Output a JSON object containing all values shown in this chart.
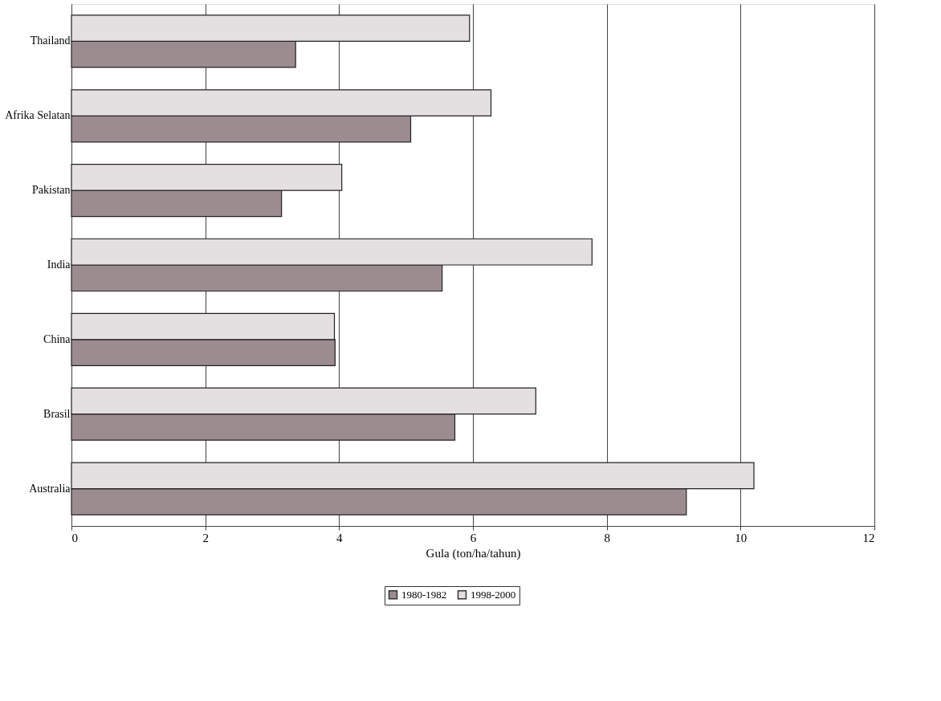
{
  "chart_data": {
    "type": "bar",
    "orientation": "horizontal",
    "xlabel": "Gula (ton/ha/tahun)",
    "categories": [
      "Thailand",
      "Afrika Selatan",
      "Pakistan",
      "India",
      "China",
      "Brasil",
      "Australia"
    ],
    "series": [
      {
        "name": "1980-1982",
        "color": "#9c8c90",
        "values": [
          3.35,
          5.07,
          3.14,
          5.54,
          3.94,
          5.73,
          9.19
        ]
      },
      {
        "name": "1998-2000",
        "color": "#e4e0e2",
        "values": [
          5.95,
          6.27,
          4.04,
          7.78,
          3.93,
          6.94,
          10.2
        ]
      }
    ],
    "xlim": [
      0,
      12
    ],
    "xticks": [
      0,
      2,
      4,
      6,
      8,
      10,
      12
    ],
    "grid": "x",
    "legend": "bottom"
  }
}
